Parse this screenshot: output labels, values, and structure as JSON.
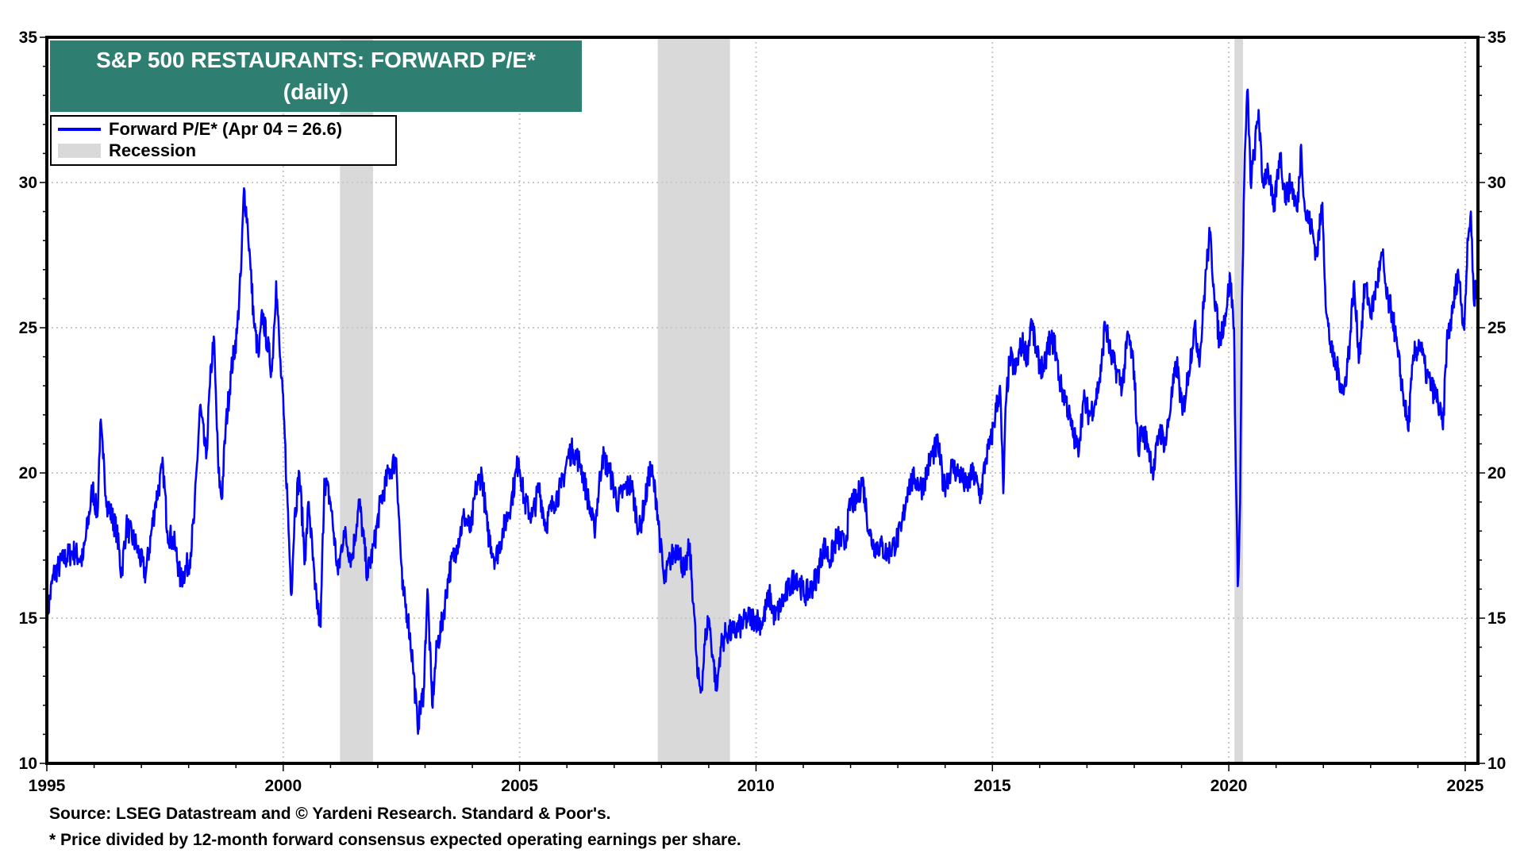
{
  "chart_data": {
    "type": "line",
    "title": "S&P 500 RESTAURANTS: FORWARD P/E*",
    "subtitle": "(daily)",
    "xlabel": "",
    "ylabel": "",
    "xlim": [
      1995,
      2025.27
    ],
    "ylim": [
      10,
      35
    ],
    "x_ticks": [
      "1995",
      "2000",
      "2005",
      "2010",
      "2015",
      "2020",
      "2025"
    ],
    "y_ticks": [
      "10",
      "15",
      "20",
      "25",
      "30",
      "35"
    ],
    "grid": true,
    "legend_placement": "top-left",
    "legend": [
      {
        "label": "Forward P/E* (Apr 04 = 26.6)",
        "color": "#0000ff",
        "kind": "line"
      },
      {
        "label": "Recession",
        "color": "#d9d9d9",
        "kind": "band"
      }
    ],
    "recessions": [
      [
        2001.2,
        2001.9
      ],
      [
        2007.92,
        2009.45
      ],
      [
        2020.12,
        2020.3
      ]
    ],
    "series": [
      {
        "name": "Forward P/E*",
        "color": "#0000ff",
        "points": [
          [
            1995.0,
            15.0
          ],
          [
            1995.14,
            16.5
          ],
          [
            1995.35,
            17.0
          ],
          [
            1995.55,
            17.3
          ],
          [
            1995.76,
            17.0
          ],
          [
            1995.97,
            19.5
          ],
          [
            1996.07,
            18.5
          ],
          [
            1996.13,
            21.7
          ],
          [
            1996.19,
            20.5
          ],
          [
            1996.27,
            19.0
          ],
          [
            1996.48,
            18.0
          ],
          [
            1996.58,
            16.5
          ],
          [
            1996.68,
            18.2
          ],
          [
            1996.89,
            17.5
          ],
          [
            1997.09,
            16.5
          ],
          [
            1997.3,
            19.0
          ],
          [
            1997.46,
            20.2
          ],
          [
            1997.55,
            18.0
          ],
          [
            1997.71,
            17.5
          ],
          [
            1997.83,
            16.3
          ],
          [
            1998.02,
            17.0
          ],
          [
            1998.12,
            18.5
          ],
          [
            1998.24,
            22.3
          ],
          [
            1998.37,
            20.5
          ],
          [
            1998.45,
            23.0
          ],
          [
            1998.53,
            24.7
          ],
          [
            1998.63,
            20.0
          ],
          [
            1998.7,
            19.1
          ],
          [
            1998.78,
            21.5
          ],
          [
            1998.9,
            23.5
          ],
          [
            1999.02,
            24.8
          ],
          [
            1999.11,
            27.0
          ],
          [
            1999.17,
            29.8
          ],
          [
            1999.25,
            28.5
          ],
          [
            1999.31,
            27.0
          ],
          [
            1999.39,
            25.0
          ],
          [
            1999.48,
            24.0
          ],
          [
            1999.56,
            25.5
          ],
          [
            1999.66,
            24.5
          ],
          [
            1999.76,
            23.5
          ],
          [
            1999.85,
            26.6
          ],
          [
            1999.93,
            24.0
          ],
          [
            2000.01,
            22.0
          ],
          [
            2000.09,
            19.0
          ],
          [
            2000.17,
            15.8
          ],
          [
            2000.24,
            18.5
          ],
          [
            2000.34,
            20.0
          ],
          [
            2000.46,
            17.0
          ],
          [
            2000.54,
            19.0
          ],
          [
            2000.67,
            16.0
          ],
          [
            2000.79,
            14.7
          ],
          [
            2000.87,
            19.8
          ],
          [
            2001.0,
            19.0
          ],
          [
            2001.16,
            16.5
          ],
          [
            2001.28,
            18.0
          ],
          [
            2001.45,
            17.0
          ],
          [
            2001.61,
            19.0
          ],
          [
            2001.78,
            16.5
          ],
          [
            2001.92,
            17.5
          ],
          [
            2002.06,
            19.0
          ],
          [
            2002.23,
            20.0
          ],
          [
            2002.39,
            20.5
          ],
          [
            2002.52,
            16.0
          ],
          [
            2002.64,
            15.0
          ],
          [
            2002.74,
            13.5
          ],
          [
            2002.84,
            11.3
          ],
          [
            2002.97,
            12.5
          ],
          [
            2003.05,
            16.0
          ],
          [
            2003.15,
            12.0
          ],
          [
            2003.25,
            14.0
          ],
          [
            2003.38,
            15.0
          ],
          [
            2003.5,
            16.5
          ],
          [
            2003.67,
            17.5
          ],
          [
            2003.83,
            18.5
          ],
          [
            2003.97,
            18.0
          ],
          [
            2004.08,
            19.5
          ],
          [
            2004.2,
            20.0
          ],
          [
            2004.32,
            18.0
          ],
          [
            2004.49,
            17.0
          ],
          [
            2004.65,
            18.0
          ],
          [
            2004.82,
            19.0
          ],
          [
            2004.98,
            20.5
          ],
          [
            2005.1,
            19.0
          ],
          [
            2005.27,
            18.5
          ],
          [
            2005.41,
            19.5
          ],
          [
            2005.55,
            18.2
          ],
          [
            2005.72,
            19.0
          ],
          [
            2005.88,
            19.5
          ],
          [
            2006.03,
            20.6
          ],
          [
            2006.13,
            20.8
          ],
          [
            2006.29,
            20.3
          ],
          [
            2006.46,
            19.0
          ],
          [
            2006.58,
            18.0
          ],
          [
            2006.75,
            20.6
          ],
          [
            2006.91,
            20.0
          ],
          [
            2007.07,
            19.0
          ],
          [
            2007.24,
            19.5
          ],
          [
            2007.36,
            19.6
          ],
          [
            2007.53,
            18.0
          ],
          [
            2007.65,
            19.0
          ],
          [
            2007.77,
            20.2
          ],
          [
            2007.9,
            19.0
          ],
          [
            2007.98,
            17.5
          ],
          [
            2008.06,
            16.2
          ],
          [
            2008.18,
            17.0
          ],
          [
            2008.35,
            17.5
          ],
          [
            2008.49,
            16.5
          ],
          [
            2008.59,
            17.5
          ],
          [
            2008.68,
            15.5
          ],
          [
            2008.76,
            13.0
          ],
          [
            2008.84,
            12.5
          ],
          [
            2008.94,
            14.5
          ],
          [
            2009.0,
            15.0
          ],
          [
            2009.1,
            13.5
          ],
          [
            2009.17,
            12.5
          ],
          [
            2009.25,
            14.0
          ],
          [
            2009.37,
            14.5
          ],
          [
            2009.52,
            14.5
          ],
          [
            2009.66,
            14.7
          ],
          [
            2009.83,
            15.0
          ],
          [
            2009.99,
            15.0
          ],
          [
            2010.13,
            14.8
          ],
          [
            2010.28,
            15.8
          ],
          [
            2010.4,
            15.0
          ],
          [
            2010.54,
            15.5
          ],
          [
            2010.69,
            16.0
          ],
          [
            2010.85,
            16.5
          ],
          [
            2011.02,
            15.8
          ],
          [
            2011.16,
            16.0
          ],
          [
            2011.3,
            16.5
          ],
          [
            2011.43,
            17.5
          ],
          [
            2011.57,
            17.0
          ],
          [
            2011.71,
            17.8
          ],
          [
            2011.88,
            17.5
          ],
          [
            2012.0,
            19.0
          ],
          [
            2012.13,
            19.0
          ],
          [
            2012.25,
            19.8
          ],
          [
            2012.39,
            18.0
          ],
          [
            2012.49,
            17.5
          ],
          [
            2012.62,
            17.5
          ],
          [
            2012.78,
            17.2
          ],
          [
            2012.91,
            17.5
          ],
          [
            2013.07,
            18.0
          ],
          [
            2013.21,
            19.5
          ],
          [
            2013.36,
            19.8
          ],
          [
            2013.52,
            19.5
          ],
          [
            2013.69,
            20.5
          ],
          [
            2013.85,
            21.0
          ],
          [
            2013.97,
            19.5
          ],
          [
            2014.14,
            20.2
          ],
          [
            2014.3,
            20.0
          ],
          [
            2014.45,
            19.5
          ],
          [
            2014.59,
            20.0
          ],
          [
            2014.75,
            19.2
          ],
          [
            2014.86,
            20.5
          ],
          [
            2014.96,
            21.0
          ],
          [
            2015.06,
            22.0
          ],
          [
            2015.16,
            23.0
          ],
          [
            2015.23,
            19.3
          ],
          [
            2015.29,
            22.5
          ],
          [
            2015.37,
            24.0
          ],
          [
            2015.49,
            23.5
          ],
          [
            2015.62,
            24.5
          ],
          [
            2015.74,
            24.0
          ],
          [
            2015.82,
            25.3
          ],
          [
            2015.94,
            24.0
          ],
          [
            2016.09,
            23.5
          ],
          [
            2016.19,
            24.5
          ],
          [
            2016.31,
            24.5
          ],
          [
            2016.44,
            23.0
          ],
          [
            2016.56,
            22.5
          ],
          [
            2016.68,
            21.5
          ],
          [
            2016.81,
            20.8
          ],
          [
            2016.93,
            22.5
          ],
          [
            2017.05,
            22.0
          ],
          [
            2017.18,
            22.5
          ],
          [
            2017.3,
            23.5
          ],
          [
            2017.38,
            25.2
          ],
          [
            2017.51,
            24.0
          ],
          [
            2017.63,
            23.5
          ],
          [
            2017.75,
            23.0
          ],
          [
            2017.87,
            24.8
          ],
          [
            2018.0,
            23.5
          ],
          [
            2018.08,
            20.8
          ],
          [
            2018.16,
            21.5
          ],
          [
            2018.29,
            21.0
          ],
          [
            2018.41,
            20.0
          ],
          [
            2018.53,
            21.5
          ],
          [
            2018.66,
            21.0
          ],
          [
            2018.78,
            22.5
          ],
          [
            2018.9,
            23.8
          ],
          [
            2019.02,
            22.0
          ],
          [
            2019.15,
            23.5
          ],
          [
            2019.27,
            25.0
          ],
          [
            2019.39,
            24.0
          ],
          [
            2019.52,
            27.0
          ],
          [
            2019.6,
            28.2
          ],
          [
            2019.68,
            26.5
          ],
          [
            2019.8,
            24.5
          ],
          [
            2019.93,
            25.5
          ],
          [
            2020.03,
            26.7
          ],
          [
            2020.11,
            25.0
          ],
          [
            2020.15,
            20.0
          ],
          [
            2020.19,
            16.1
          ],
          [
            2020.24,
            19.0
          ],
          [
            2020.28,
            26.0
          ],
          [
            2020.34,
            31.0
          ],
          [
            2020.4,
            33.2
          ],
          [
            2020.46,
            30.0
          ],
          [
            2020.54,
            31.0
          ],
          [
            2020.63,
            32.5
          ],
          [
            2020.71,
            30.0
          ],
          [
            2020.83,
            30.5
          ],
          [
            2020.95,
            29.0
          ],
          [
            2021.08,
            31.0
          ],
          [
            2021.2,
            29.5
          ],
          [
            2021.32,
            30.0
          ],
          [
            2021.45,
            29.0
          ],
          [
            2021.53,
            31.3
          ],
          [
            2021.61,
            29.0
          ],
          [
            2021.74,
            28.5
          ],
          [
            2021.86,
            27.5
          ],
          [
            2021.98,
            29.3
          ],
          [
            2022.06,
            25.5
          ],
          [
            2022.19,
            24.0
          ],
          [
            2022.31,
            23.5
          ],
          [
            2022.43,
            22.7
          ],
          [
            2022.56,
            24.5
          ],
          [
            2022.64,
            26.5
          ],
          [
            2022.76,
            24.0
          ],
          [
            2022.88,
            26.5
          ],
          [
            2023.01,
            25.5
          ],
          [
            2023.13,
            26.5
          ],
          [
            2023.25,
            27.5
          ],
          [
            2023.34,
            26.0
          ],
          [
            2023.46,
            25.5
          ],
          [
            2023.58,
            24.0
          ],
          [
            2023.71,
            22.5
          ],
          [
            2023.79,
            21.5
          ],
          [
            2023.91,
            24.0
          ],
          [
            2024.04,
            24.5
          ],
          [
            2024.16,
            23.5
          ],
          [
            2024.28,
            23.0
          ],
          [
            2024.42,
            22.5
          ],
          [
            2024.53,
            21.5
          ],
          [
            2024.61,
            24.5
          ],
          [
            2024.73,
            25.5
          ],
          [
            2024.85,
            27.0
          ],
          [
            2024.97,
            25.0
          ],
          [
            2025.06,
            28.0
          ],
          [
            2025.12,
            29.0
          ],
          [
            2025.18,
            26.0
          ],
          [
            2025.26,
            26.6
          ]
        ]
      }
    ]
  },
  "footer": {
    "source": "Source: LSEG Datastream and © Yardeni Research. Standard & Poor's.",
    "note": "* Price divided by 12-month forward consensus expected operating earnings per share."
  }
}
